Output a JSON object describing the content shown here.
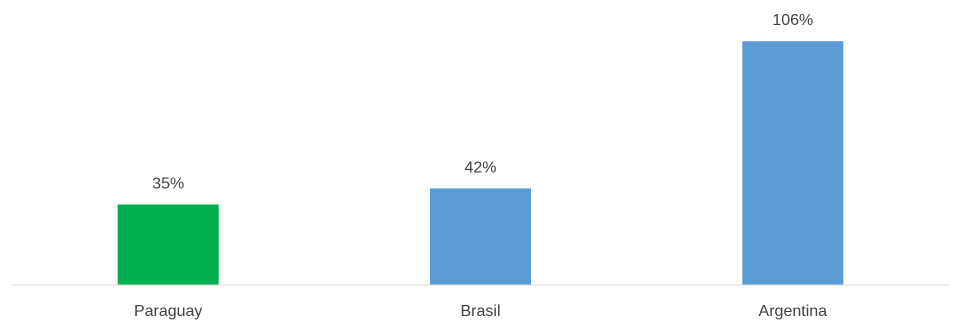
{
  "chart_data": {
    "type": "bar",
    "categories": [
      "Paraguay",
      "Brasil",
      "Argentina"
    ],
    "values": [
      35,
      42,
      106
    ],
    "data_labels": [
      "35%",
      "42%",
      "106%"
    ],
    "bar_colors": [
      "#00b050",
      "#5b9bd5",
      "#5b9bd5"
    ],
    "title": "",
    "xlabel": "",
    "ylabel": "",
    "ylim": [
      0,
      110
    ],
    "grid": false,
    "legend": "none"
  }
}
